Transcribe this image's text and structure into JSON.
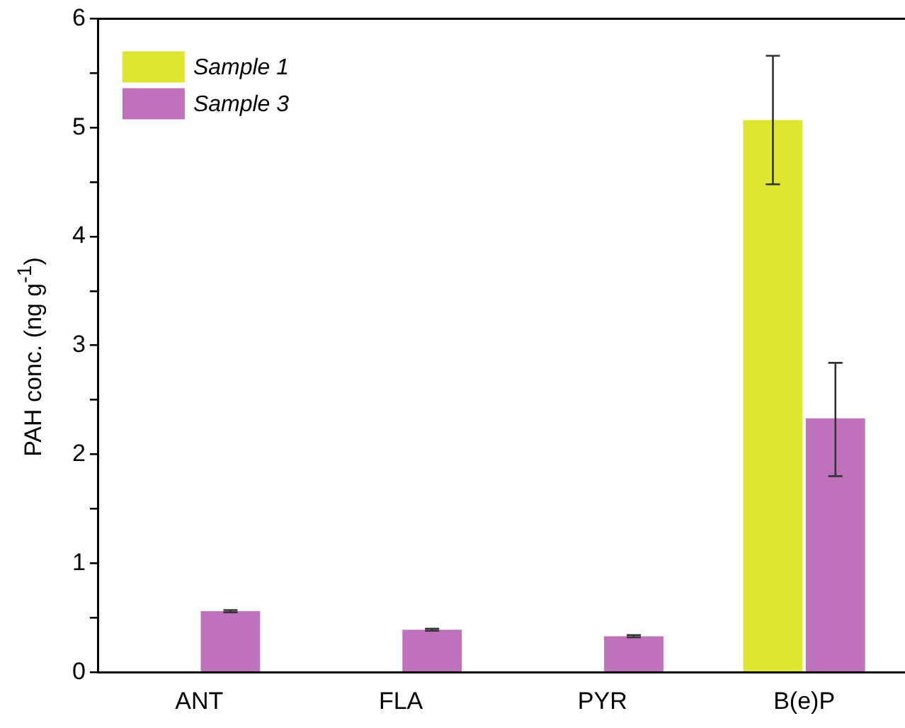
{
  "chart_data": {
    "type": "bar",
    "ylabel": "PAH conc. (ng g$^{-1}$)",
    "categories": [
      "ANT",
      "FLA",
      "PYR",
      "B(e)P"
    ],
    "series": [
      {
        "name": "Sample 1",
        "color": "#dfe632",
        "values": [
          null,
          null,
          null,
          5.07
        ],
        "errors": [
          null,
          null,
          null,
          [
            4.48,
            5.66
          ]
        ]
      },
      {
        "name": "Sample 3",
        "color": "#bf72bc",
        "values": [
          0.56,
          0.39,
          0.33,
          2.33
        ],
        "errors": [
          0.01,
          0.01,
          0.01,
          [
            1.8,
            2.84
          ]
        ]
      }
    ],
    "ylim": [
      0,
      6
    ],
    "yticks": [
      0,
      {
        "value": 0.5,
        "label": null
      },
      1,
      {
        "value": 1.5,
        "label": null
      },
      2,
      {
        "value": 2.5,
        "label": null
      },
      3,
      {
        "value": 3.5,
        "label": null
      },
      4,
      {
        "value": 4.5,
        "label": null
      },
      5,
      {
        "value": 5.5,
        "label": null
      },
      6
    ],
    "grid": false,
    "legend": "top left"
  }
}
